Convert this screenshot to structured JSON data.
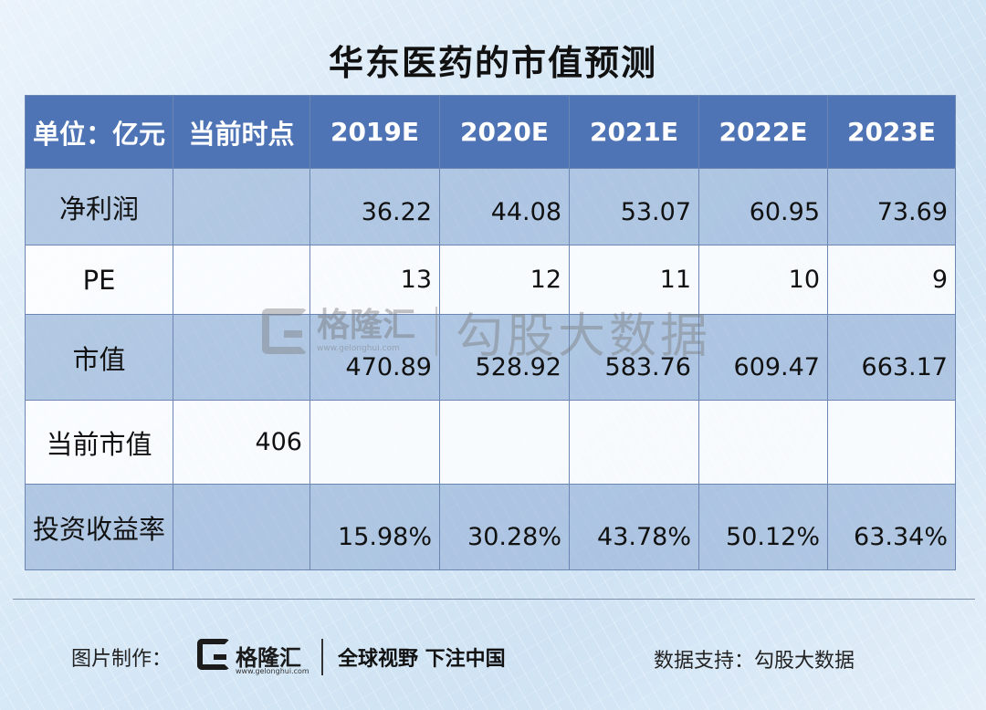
{
  "title": "华东医药的市值预测",
  "chart_data": {
    "type": "table",
    "columns": [
      "单位：亿元",
      "当前时点",
      "2019E",
      "2020E",
      "2021E",
      "2022E",
      "2023E"
    ],
    "rows": [
      {
        "label": "净利润",
        "current": "",
        "values": [
          "36.22",
          "44.08",
          "53.07",
          "60.95",
          "73.69"
        ]
      },
      {
        "label": "PE",
        "current": "",
        "values": [
          "13",
          "12",
          "11",
          "10",
          "9"
        ]
      },
      {
        "label": "市值",
        "current": "",
        "values": [
          "470.89",
          "528.92",
          "583.76",
          "609.47",
          "663.17"
        ]
      },
      {
        "label": "当前市值",
        "current": "406",
        "values": [
          "",
          "",
          "",
          "",
          ""
        ]
      },
      {
        "label": "投资收益率",
        "current": "",
        "values": [
          "15.98%",
          "30.28%",
          "43.78%",
          "50.12%",
          "63.34%"
        ]
      }
    ]
  },
  "watermark": {
    "brand": "格隆汇",
    "url": "www.gelonghui.com",
    "text": "勾股大数据"
  },
  "footer": {
    "credit": "图片制作：",
    "brand": "格隆汇",
    "url": "www.gelonghui.com",
    "slogan": "全球视野 下注中国",
    "source": "数据支持：勾股大数据"
  },
  "colors": {
    "header_bg": "#4f74b5",
    "row_dark": "#96b2d6",
    "row_light": "#ffffff",
    "border": "#6b86b3"
  }
}
